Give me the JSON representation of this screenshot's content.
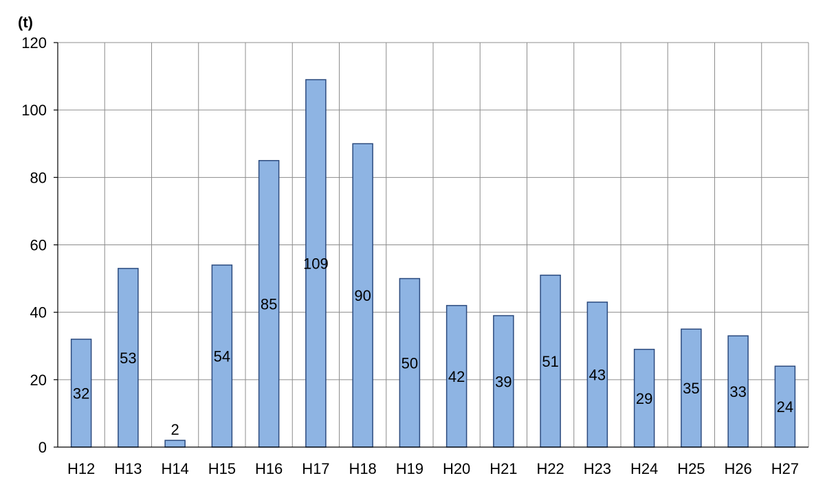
{
  "chart_data": {
    "type": "bar",
    "title": "",
    "xlabel": "",
    "ylabel": "",
    "unit_label": "(t)",
    "categories": [
      "H12",
      "H13",
      "H14",
      "H15",
      "H16",
      "H17",
      "H18",
      "H19",
      "H20",
      "H21",
      "H22",
      "H23",
      "H24",
      "H25",
      "H26",
      "H27"
    ],
    "values": [
      32,
      53,
      2,
      54,
      85,
      109,
      90,
      50,
      42,
      39,
      51,
      43,
      29,
      35,
      33,
      24
    ],
    "ylim": [
      0,
      120
    ],
    "yticks": [
      0,
      20,
      40,
      60,
      80,
      100,
      120
    ],
    "grid": true,
    "legend": "none",
    "bar_color": "#8eb4e3",
    "bar_edge_color": "#2b4a7e"
  }
}
